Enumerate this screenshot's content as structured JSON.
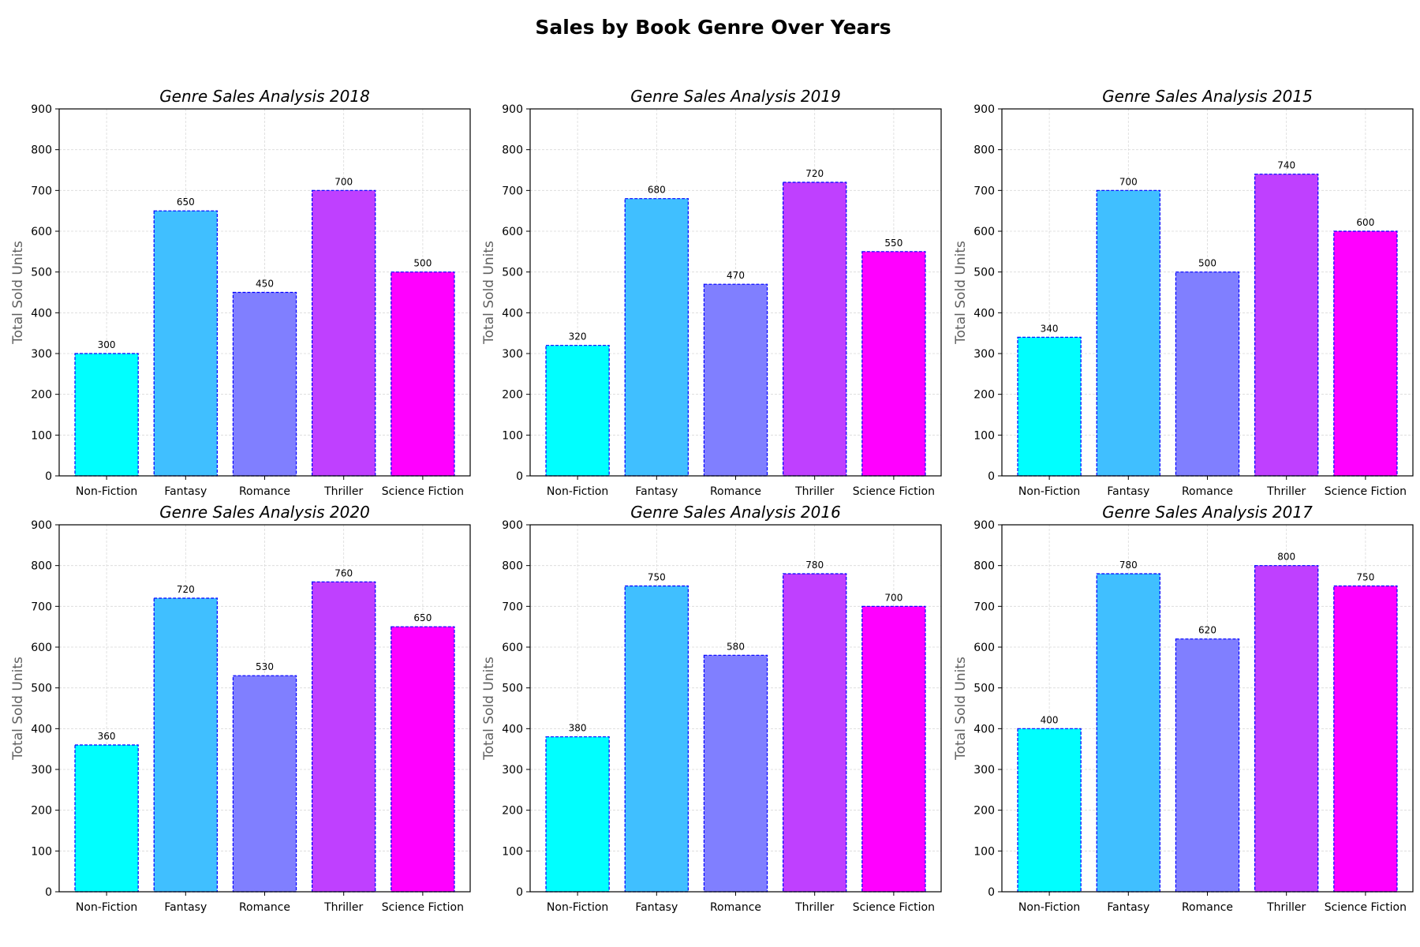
{
  "figure_title": "Sales by Book Genre Over Years",
  "chart_data": [
    {
      "type": "bar",
      "title": "Genre Sales Analysis 2018",
      "xlabel": "",
      "ylabel": "Total Sold Units",
      "ylim": [
        0,
        900
      ],
      "yticks": [
        0,
        100,
        200,
        300,
        400,
        500,
        600,
        700,
        800,
        900
      ],
      "grid": true,
      "categories": [
        "Non-Fiction",
        "Fantasy",
        "Romance",
        "Thriller",
        "Science Fiction"
      ],
      "values": [
        300,
        650,
        450,
        700,
        500
      ]
    },
    {
      "type": "bar",
      "title": "Genre Sales Analysis 2019",
      "xlabel": "",
      "ylabel": "Total Sold Units",
      "ylim": [
        0,
        900
      ],
      "yticks": [
        0,
        100,
        200,
        300,
        400,
        500,
        600,
        700,
        800,
        900
      ],
      "grid": true,
      "categories": [
        "Non-Fiction",
        "Fantasy",
        "Romance",
        "Thriller",
        "Science Fiction"
      ],
      "values": [
        320,
        680,
        470,
        720,
        550
      ]
    },
    {
      "type": "bar",
      "title": "Genre Sales Analysis 2015",
      "xlabel": "",
      "ylabel": "Total Sold Units",
      "ylim": [
        0,
        900
      ],
      "yticks": [
        0,
        100,
        200,
        300,
        400,
        500,
        600,
        700,
        800,
        900
      ],
      "grid": true,
      "categories": [
        "Non-Fiction",
        "Fantasy",
        "Romance",
        "Thriller",
        "Science Fiction"
      ],
      "values": [
        340,
        700,
        500,
        740,
        600
      ]
    },
    {
      "type": "bar",
      "title": "Genre Sales Analysis 2020",
      "xlabel": "",
      "ylabel": "Total Sold Units",
      "ylim": [
        0,
        900
      ],
      "yticks": [
        0,
        100,
        200,
        300,
        400,
        500,
        600,
        700,
        800,
        900
      ],
      "grid": true,
      "categories": [
        "Non-Fiction",
        "Fantasy",
        "Romance",
        "Thriller",
        "Science Fiction"
      ],
      "values": [
        360,
        720,
        530,
        760,
        650
      ]
    },
    {
      "type": "bar",
      "title": "Genre Sales Analysis 2016",
      "xlabel": "",
      "ylabel": "Total Sold Units",
      "ylim": [
        0,
        900
      ],
      "yticks": [
        0,
        100,
        200,
        300,
        400,
        500,
        600,
        700,
        800,
        900
      ],
      "grid": true,
      "categories": [
        "Non-Fiction",
        "Fantasy",
        "Romance",
        "Thriller",
        "Science Fiction"
      ],
      "values": [
        380,
        750,
        580,
        780,
        700
      ]
    },
    {
      "type": "bar",
      "title": "Genre Sales Analysis 2017",
      "xlabel": "",
      "ylabel": "Total Sold Units",
      "ylim": [
        0,
        900
      ],
      "yticks": [
        0,
        100,
        200,
        300,
        400,
        500,
        600,
        700,
        800,
        900
      ],
      "grid": true,
      "categories": [
        "Non-Fiction",
        "Fantasy",
        "Romance",
        "Thriller",
        "Science Fiction"
      ],
      "values": [
        400,
        780,
        620,
        800,
        750
      ]
    }
  ],
  "colors": {
    "bars": [
      "#00ffff",
      "#40bfff",
      "#807fff",
      "#bf40ff",
      "#ff00ff"
    ],
    "bar_edge": "#0000ff",
    "grid": "#d9d9d9",
    "ylabel_text": "#5f5f5f"
  }
}
